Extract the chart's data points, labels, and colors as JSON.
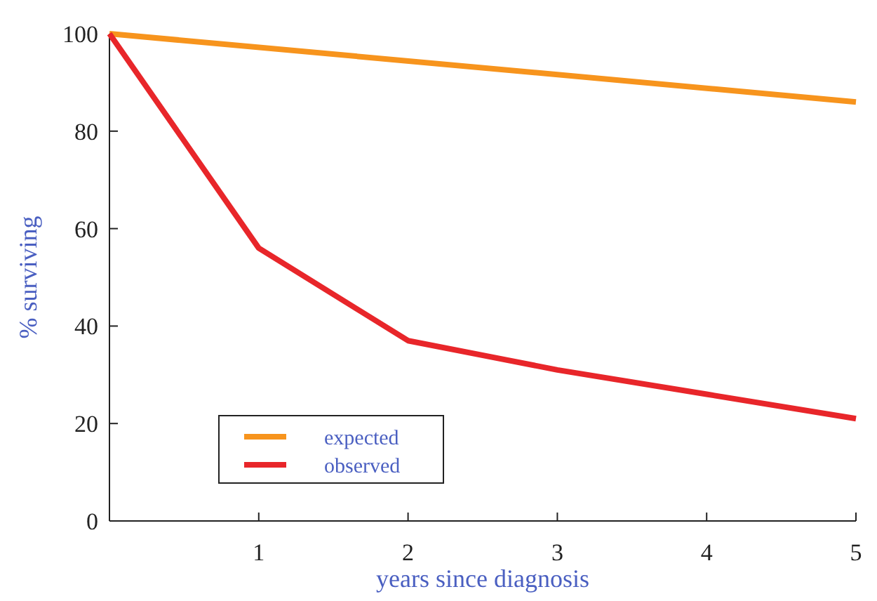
{
  "chart_data": {
    "type": "line",
    "xlabel": "years since diagnosis",
    "ylabel": "% surviving",
    "series": [
      {
        "name": "expected",
        "color": "#f7941d",
        "x": [
          0,
          5
        ],
        "values": [
          100,
          86
        ]
      },
      {
        "name": "observed",
        "color": "#e8262a",
        "x": [
          0,
          1,
          2,
          3,
          4,
          5
        ],
        "values": [
          100,
          56,
          37,
          31,
          26,
          21
        ]
      }
    ],
    "xlim": [
      0,
      5
    ],
    "xticks": [
      1,
      2,
      3,
      4,
      5
    ],
    "ylim": [
      0,
      100
    ],
    "yticks": [
      0,
      20,
      40,
      60,
      80,
      100
    ],
    "grid": false,
    "legend": "bottom left",
    "marker": "none",
    "line_style": "solid"
  }
}
